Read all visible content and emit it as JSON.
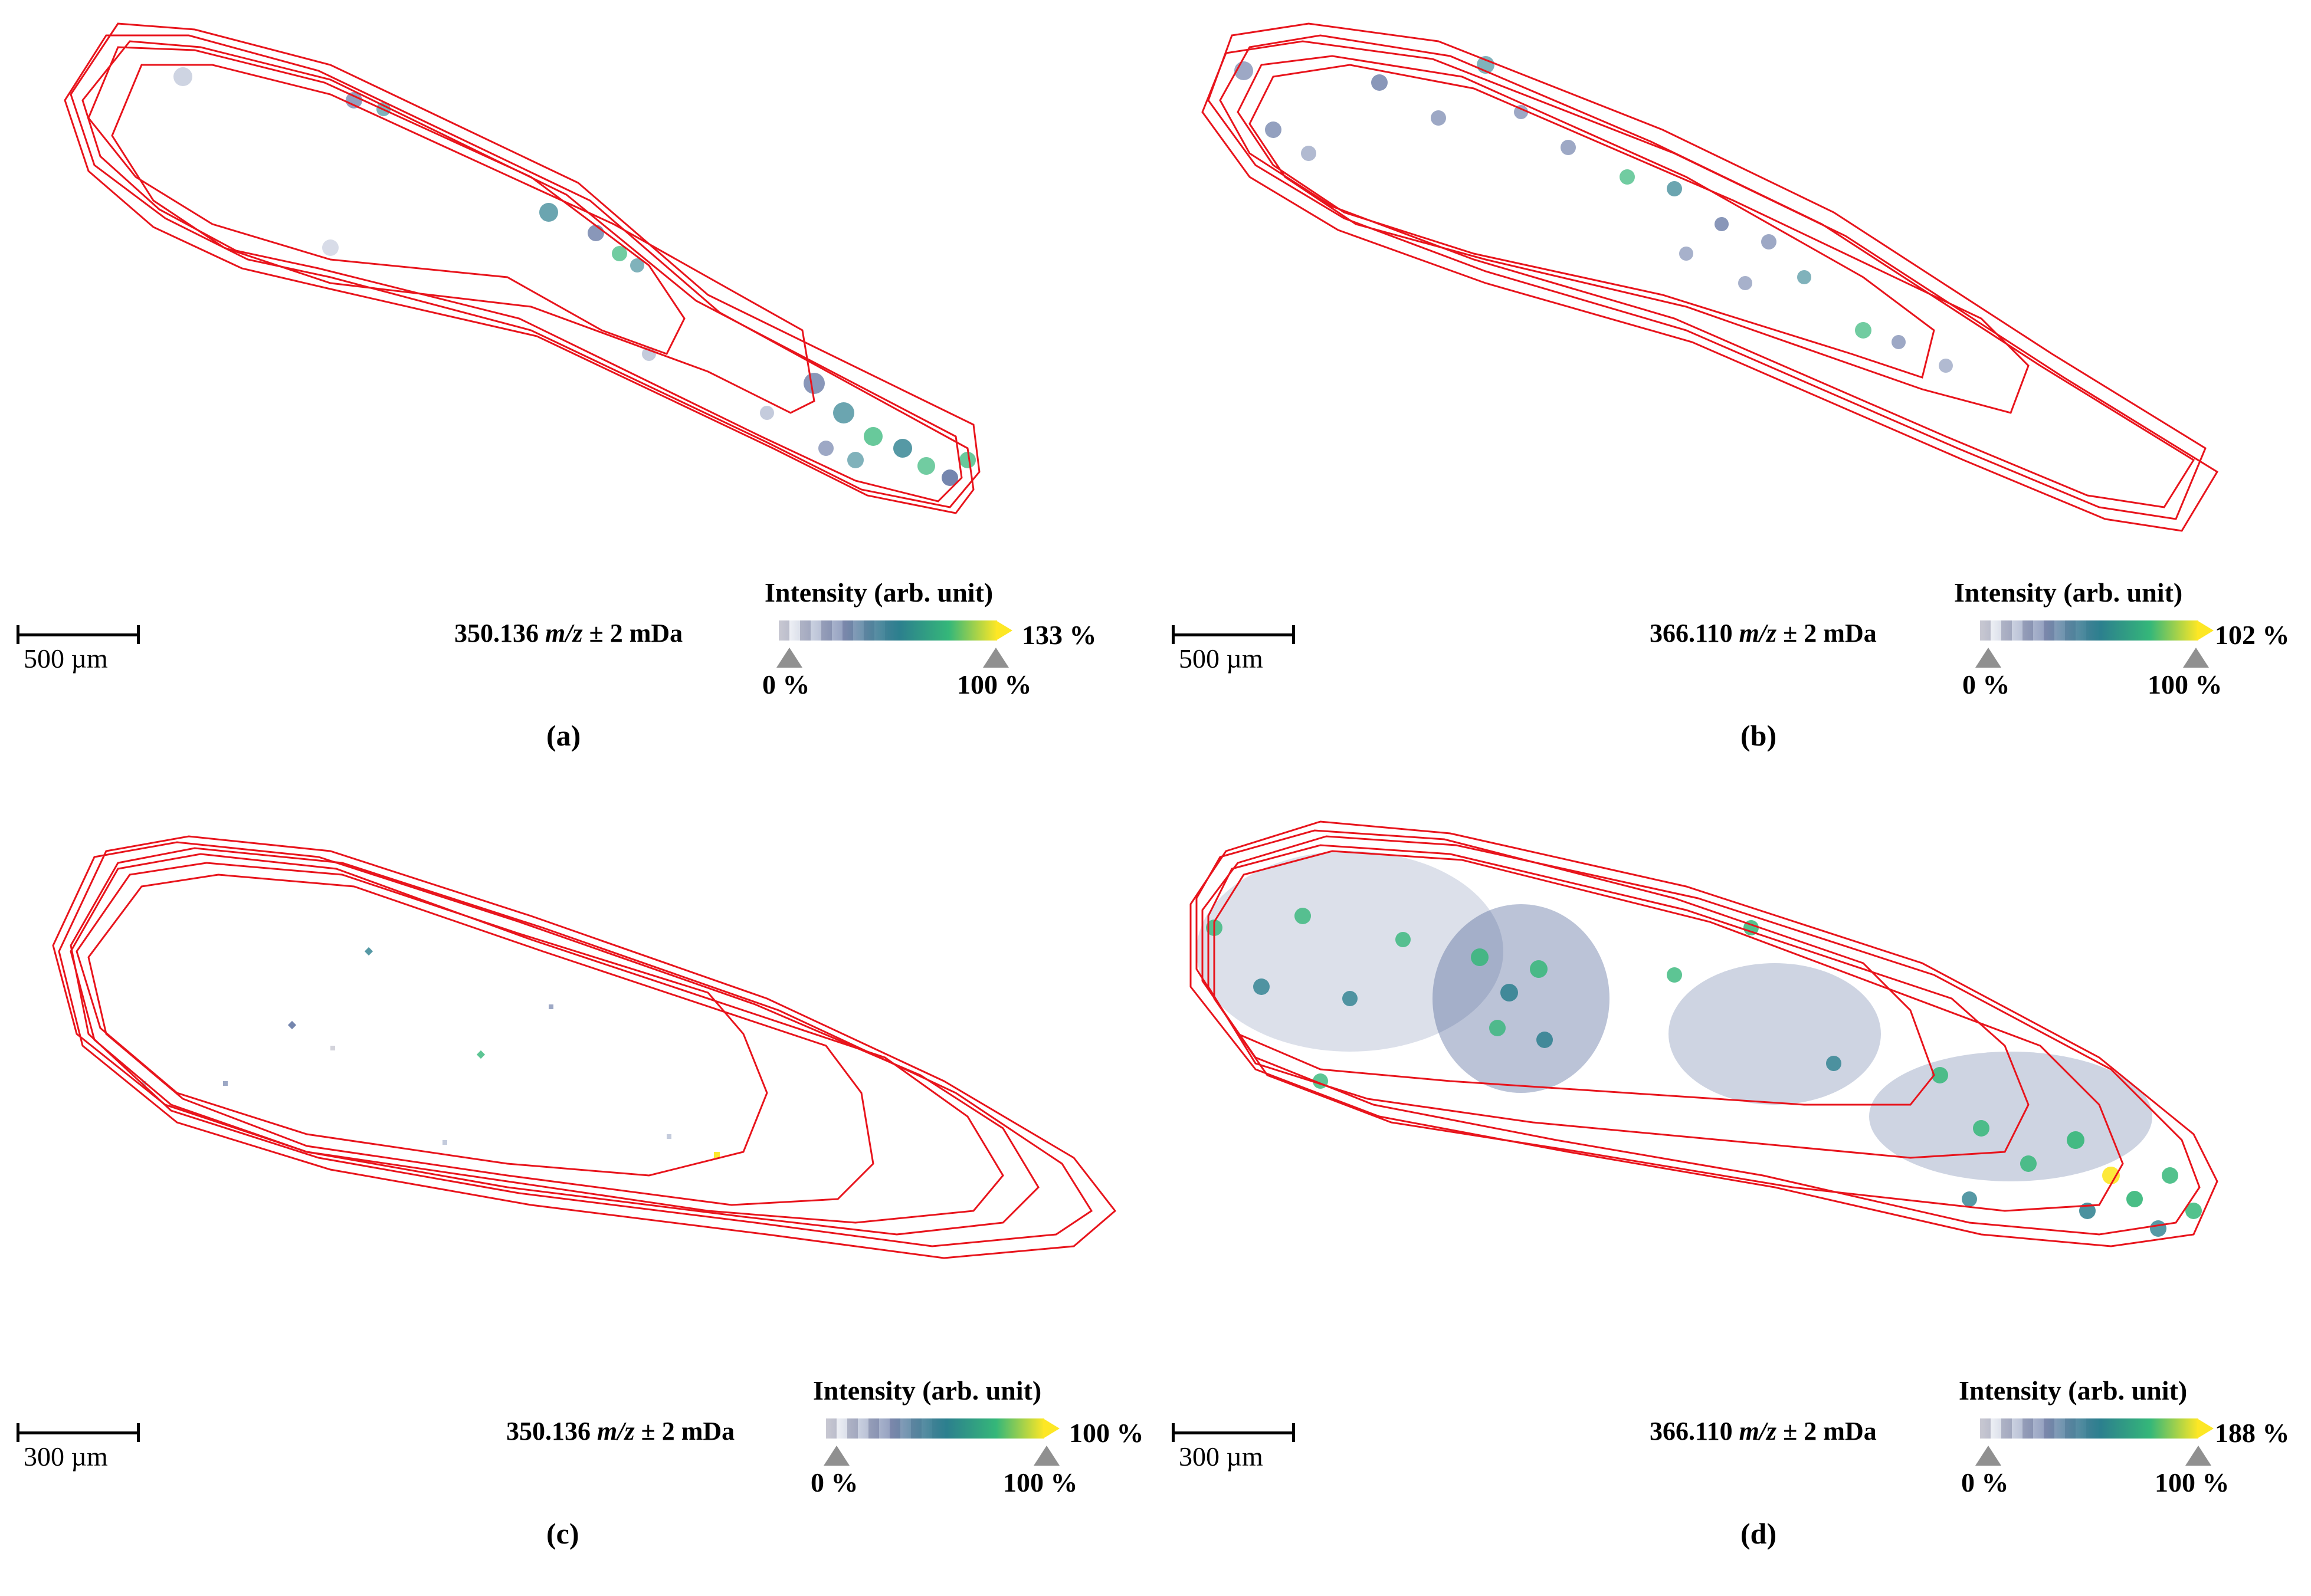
{
  "panels": {
    "a": {
      "caption": "(a)",
      "scale_label": "500 µm",
      "mz_prefix": "350.136 ",
      "mz_unit": "m/z",
      "mz_suffix": " ± 2 mDa",
      "legend_title": "Intensity (arb. unit)",
      "max_label": "133 %",
      "min_tick": "0 %",
      "ref_tick": "100 %"
    },
    "b": {
      "caption": "(b)",
      "scale_label": "500 µm",
      "mz_prefix": "366.110 ",
      "mz_unit": "m/z",
      "mz_suffix": " ± 2 mDa",
      "legend_title": "Intensity (arb. unit)",
      "max_label": "102 %",
      "min_tick": "0 %",
      "ref_tick": "100 %"
    },
    "c": {
      "caption": "(c)",
      "scale_label": "300 µm",
      "mz_prefix": "350.136 ",
      "mz_unit": "m/z",
      "mz_suffix": " ± 2 mDa",
      "legend_title": "Intensity (arb. unit)",
      "max_label": "100 %",
      "min_tick": "0 %",
      "ref_tick": "100 %"
    },
    "d": {
      "caption": "(d)",
      "scale_label": "300 µm",
      "mz_prefix": "366.110 ",
      "mz_unit": "m/z",
      "mz_suffix": " ± 2 mDa",
      "legend_title": "Intensity (arb. unit)",
      "max_label": "188 %",
      "min_tick": "0 %",
      "ref_tick": "100 %"
    }
  },
  "colors": {
    "outline": "#e8141c",
    "colormap": [
      "#c8c8d2",
      "#3b528b",
      "#2c7f8e",
      "#35b779",
      "#fde725"
    ],
    "tick_marker": "#909090"
  }
}
